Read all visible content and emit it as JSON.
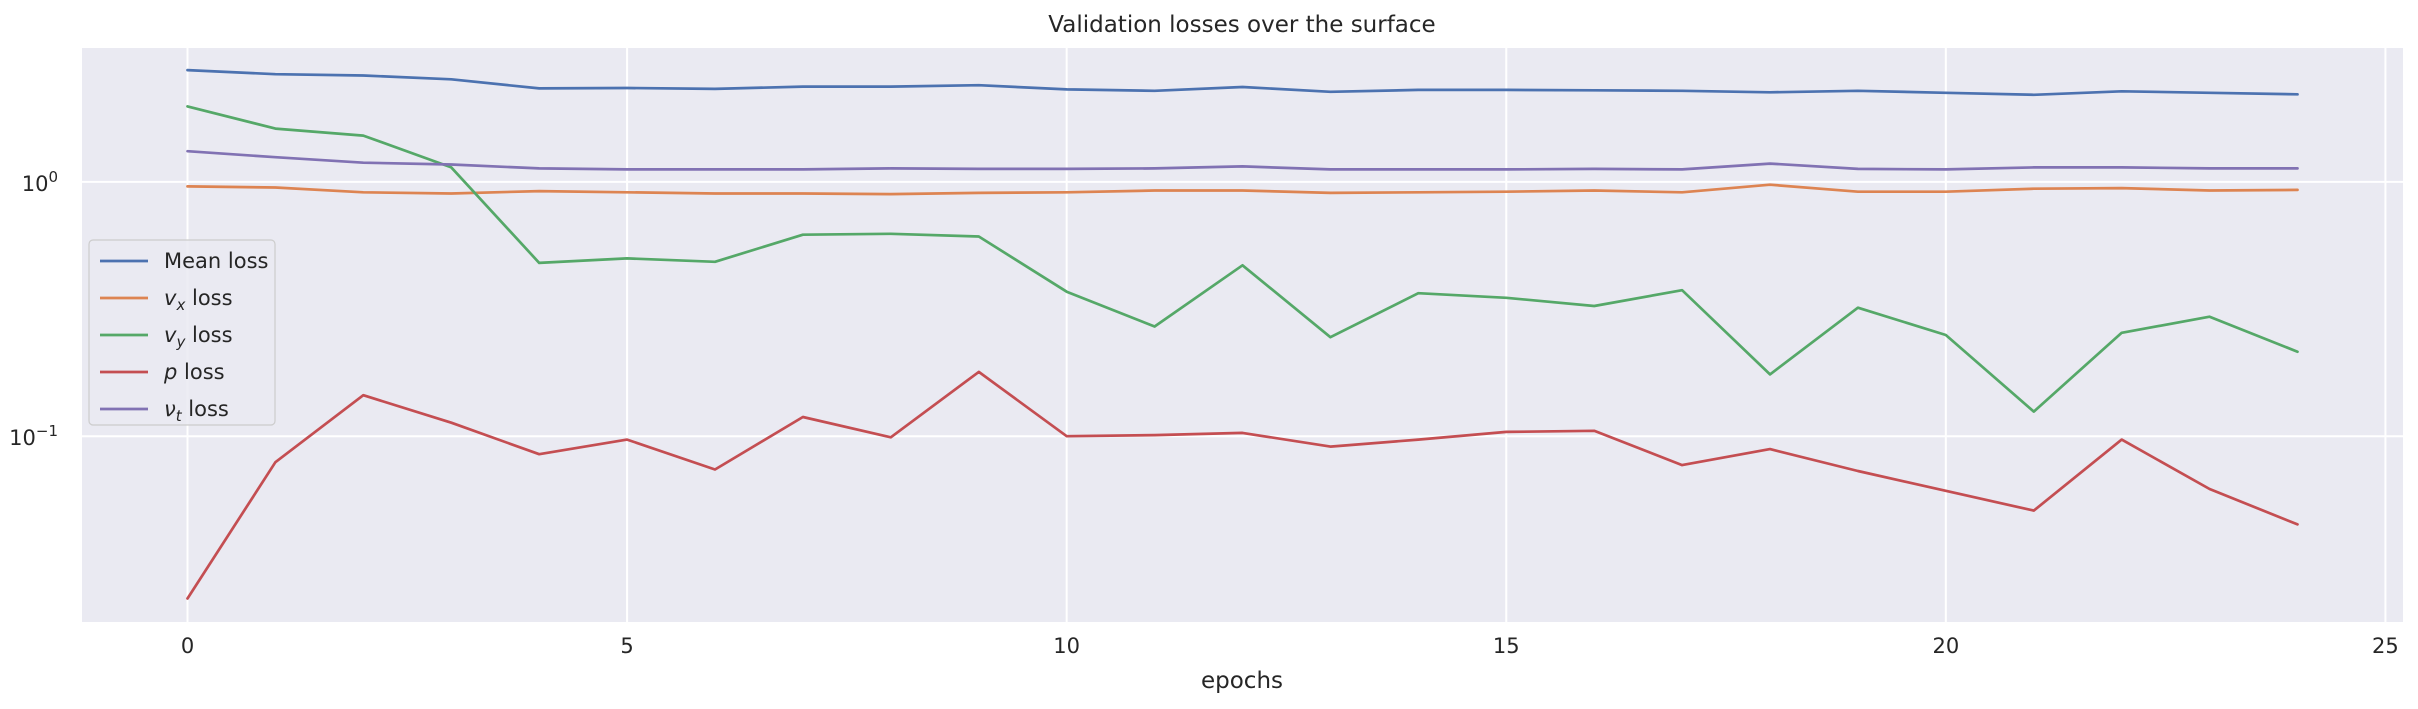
{
  "chart_data": {
    "type": "line",
    "title": "Validation losses over the surface",
    "xlabel": "epochs",
    "ylabel": "",
    "yscale": "log",
    "xlim": [
      -1.2,
      25.2
    ],
    "ylim": [
      0.0186,
      3.36
    ],
    "xticks": [
      0,
      5,
      10,
      15,
      20,
      25
    ],
    "yticks": [
      {
        "value": 1.0,
        "base": "10",
        "exp": "0"
      },
      {
        "value": 0.1,
        "base": "10",
        "exp": "−1"
      }
    ],
    "grid": true,
    "legend_position": "center-left",
    "x": [
      0,
      1,
      2,
      3,
      4,
      5,
      6,
      7,
      8,
      9,
      10,
      11,
      12,
      13,
      14,
      15,
      16,
      17,
      18,
      19,
      20,
      21,
      22,
      23,
      24
    ],
    "series": [
      {
        "name": "Mean loss",
        "label_main": "Mean loss",
        "label_sub": "",
        "label_tail": "",
        "color": "#4c72b0",
        "values": [
          2.75,
          2.65,
          2.62,
          2.53,
          2.33,
          2.34,
          2.32,
          2.37,
          2.37,
          2.4,
          2.31,
          2.28,
          2.36,
          2.26,
          2.3,
          2.3,
          2.29,
          2.28,
          2.25,
          2.28,
          2.24,
          2.2,
          2.27,
          2.24,
          2.21
        ]
      },
      {
        "name": "v_x loss",
        "label_main": "v",
        "label_sub": "x",
        "label_tail": " loss",
        "color": "#dd8452",
        "values": [
          0.96,
          0.95,
          0.91,
          0.9,
          0.92,
          0.91,
          0.9,
          0.9,
          0.895,
          0.905,
          0.91,
          0.925,
          0.925,
          0.905,
          0.91,
          0.915,
          0.925,
          0.91,
          0.975,
          0.915,
          0.915,
          0.94,
          0.945,
          0.925,
          0.93
        ]
      },
      {
        "name": "v_y loss",
        "label_main": "v",
        "label_sub": "y",
        "label_tail": " loss",
        "color": "#55a868",
        "values": [
          1.98,
          1.62,
          1.52,
          1.14,
          0.48,
          0.5,
          0.485,
          0.62,
          0.625,
          0.61,
          0.37,
          0.27,
          0.47,
          0.245,
          0.365,
          0.35,
          0.325,
          0.375,
          0.175,
          0.32,
          0.25,
          0.125,
          0.255,
          0.295,
          0.215
        ]
      },
      {
        "name": "p loss",
        "label_main": "p",
        "label_sub": "",
        "label_tail": " loss",
        "color": "#c44e52",
        "values": [
          0.023,
          0.079,
          0.145,
          0.113,
          0.085,
          0.097,
          0.074,
          0.119,
          0.099,
          0.179,
          0.1,
          0.101,
          0.103,
          0.091,
          0.097,
          0.104,
          0.105,
          0.077,
          0.089,
          0.073,
          0.061,
          0.051,
          0.097,
          0.062,
          0.045
        ]
      },
      {
        "name": "ν_t loss",
        "label_main": "ν",
        "label_sub": "t",
        "label_tail": " loss",
        "color": "#8172b3",
        "values": [
          1.32,
          1.25,
          1.19,
          1.17,
          1.13,
          1.12,
          1.12,
          1.12,
          1.13,
          1.125,
          1.125,
          1.13,
          1.15,
          1.12,
          1.12,
          1.12,
          1.125,
          1.12,
          1.18,
          1.125,
          1.12,
          1.14,
          1.14,
          1.13,
          1.13
        ]
      }
    ]
  }
}
